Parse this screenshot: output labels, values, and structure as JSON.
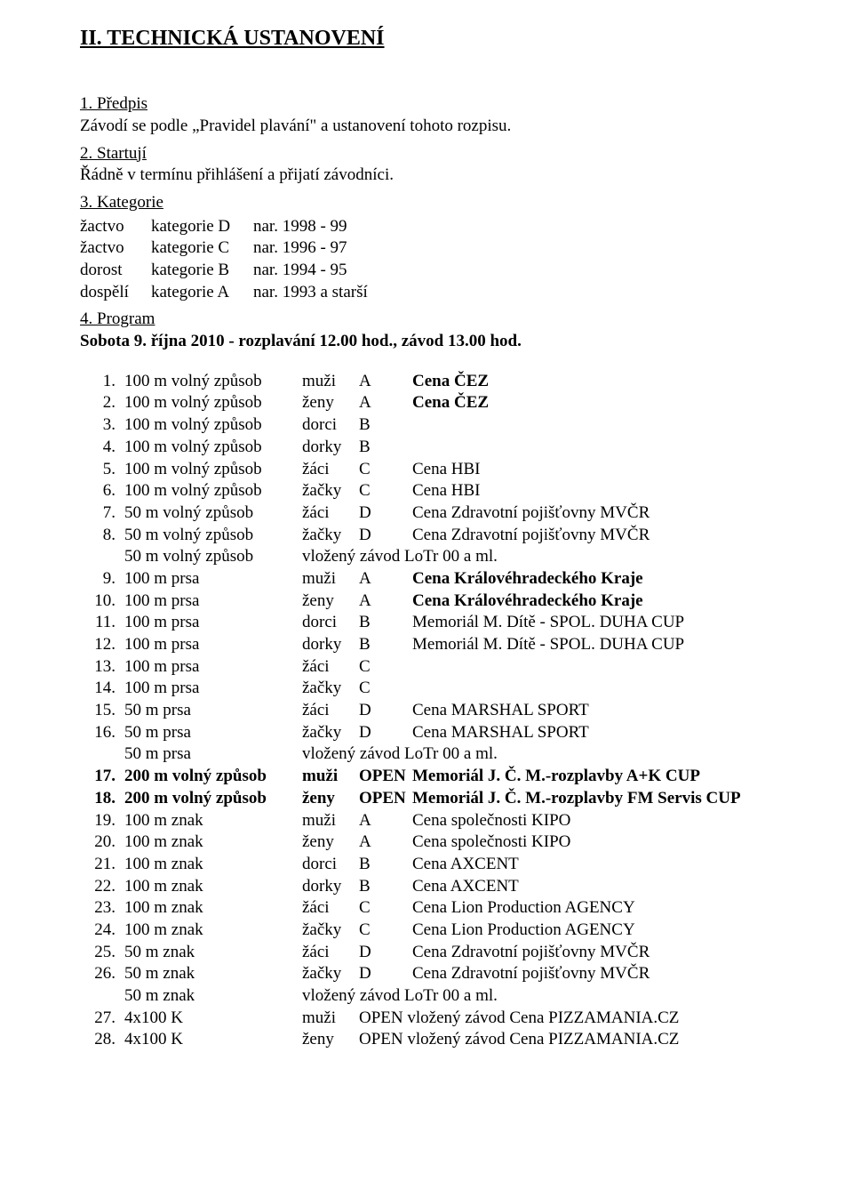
{
  "title": "II.  TECHNICKÁ USTANOVENÍ",
  "sections": {
    "s1": {
      "title": "1. Předpis",
      "text": "Závodí se podle „Pravidel plavání\" a ustanovení tohoto rozpisu."
    },
    "s2": {
      "title": "2. Startují",
      "text": "Řádně v termínu přihlášení a přijatí závodníci."
    },
    "s3": {
      "title": "3. Kategorie"
    },
    "s4": {
      "title": "4. Program",
      "time": "Sobota 9. října 2010 - rozplavání 12.00 hod., závod 13.00 hod."
    }
  },
  "categories": [
    {
      "group": "žactvo",
      "label": "kategorie D",
      "years": "nar. 1998 - 99"
    },
    {
      "group": "žactvo",
      "label": "kategorie C",
      "years": "nar. 1996 - 97"
    },
    {
      "group": "dorost",
      "label": "kategorie B",
      "years": "nar. 1994 - 95"
    },
    {
      "group": "dospělí",
      "label": "kategorie A",
      "years": "nar. 1993 a starší"
    }
  ],
  "events": [
    {
      "n": "1.",
      "ev": "100 m volný způsob",
      "gr": "muži",
      "cat": "A",
      "aw": "Cena ČEZ",
      "bold_aw": true
    },
    {
      "n": "2.",
      "ev": "100 m volný způsob",
      "gr": "ženy",
      "cat": "A",
      "aw": "Cena ČEZ",
      "bold_aw": true
    },
    {
      "n": "3.",
      "ev": "100 m volný způsob",
      "gr": "dorci",
      "cat": "B",
      "aw": ""
    },
    {
      "n": "4.",
      "ev": "100 m volný způsob",
      "gr": "dorky",
      "cat": "B",
      "aw": ""
    },
    {
      "n": "5.",
      "ev": "100 m volný způsob",
      "gr": "žáci",
      "cat": "C",
      "aw": "Cena HBI"
    },
    {
      "n": "6.",
      "ev": "100 m volný způsob",
      "gr": "žačky",
      "cat": "C",
      "aw": "Cena HBI"
    },
    {
      "n": "7.",
      "ev": "50 m volný způsob",
      "gr": "žáci",
      "cat": "D",
      "aw": "Cena Zdravotní pojišťovny MVČR"
    },
    {
      "n": "8.",
      "ev": "50 m volný způsob",
      "gr": "žačky",
      "cat": "D",
      "aw": "Cena Zdravotní pojišťovny MVČR"
    },
    {
      "n": "",
      "ev": "50 m volný způsob",
      "gr": "",
      "cat": "",
      "aw": "vložený závod LoTr 00 a ml.",
      "span": true
    },
    {
      "n": "9.",
      "ev": "100 m prsa",
      "gr": "muži",
      "cat": "A",
      "aw": "Cena Královéhradeckého Kraje",
      "bold_aw": true
    },
    {
      "n": "10.",
      "ev": "100 m prsa",
      "gr": "ženy",
      "cat": "A",
      "aw": "Cena Královéhradeckého Kraje",
      "bold_aw": true
    },
    {
      "n": "11.",
      "ev": "100 m prsa",
      "gr": "dorci",
      "cat": "B",
      "aw": "Memoriál M. Dítě - SPOL. DUHA CUP"
    },
    {
      "n": "12.",
      "ev": "100 m prsa",
      "gr": "dorky",
      "cat": "B",
      "aw": "Memoriál M. Dítě - SPOL. DUHA CUP"
    },
    {
      "n": "13.",
      "ev": "100 m prsa",
      "gr": "žáci",
      "cat": "C",
      "aw": ""
    },
    {
      "n": "14.",
      "ev": "100 m prsa",
      "gr": "žačky",
      "cat": "C",
      "aw": ""
    },
    {
      "n": "15.",
      "ev": "50 m prsa",
      "gr": "žáci",
      "cat": "D",
      "aw": "Cena MARSHAL SPORT"
    },
    {
      "n": "16.",
      "ev": "50 m prsa",
      "gr": "žačky",
      "cat": "D",
      "aw": "Cena MARSHAL SPORT"
    },
    {
      "n": "",
      "ev": "50 m prsa",
      "gr": "",
      "cat": "",
      "aw": "vložený závod LoTr 00 a ml.",
      "span": true
    },
    {
      "n": "17.",
      "ev": "200 m volný způsob",
      "gr": "muži",
      "cat": "OPEN",
      "aw": "Memoriál J. Č. M.-rozplavby   A+K CUP",
      "bold_row": true
    },
    {
      "n": "18.",
      "ev": "200 m volný způsob",
      "gr": "ženy",
      "cat": "OPEN",
      "aw": "Memoriál J. Č. M.-rozplavby   FM Servis CUP",
      "bold_row": true
    },
    {
      "n": "19.",
      "ev": "100 m znak",
      "gr": "muži",
      "cat": "A",
      "aw": "Cena společnosti KIPO"
    },
    {
      "n": "20.",
      "ev": "100 m znak",
      "gr": "ženy",
      "cat": "A",
      "aw": "Cena společnosti KIPO"
    },
    {
      "n": "21.",
      "ev": "100 m znak",
      "gr": "dorci",
      "cat": "B",
      "aw": "Cena AXCENT"
    },
    {
      "n": "22.",
      "ev": "100 m znak",
      "gr": "dorky",
      "cat": "B",
      "aw": "Cena AXCENT"
    },
    {
      "n": "23.",
      "ev": "100 m znak",
      "gr": "žáci",
      "cat": "C",
      "aw": "Cena Lion Production AGENCY"
    },
    {
      "n": "24.",
      "ev": "100 m znak",
      "gr": "žačky",
      "cat": "C",
      "aw": "Cena Lion Production AGENCY"
    },
    {
      "n": "25.",
      "ev": "50 m znak",
      "gr": "žáci",
      "cat": "D",
      "aw": "Cena Zdravotní pojišťovny MVČR"
    },
    {
      "n": "26.",
      "ev": "50 m znak",
      "gr": "žačky",
      "cat": "D",
      "aw": "Cena Zdravotní pojišťovny MVČR"
    },
    {
      "n": "",
      "ev": "50 m znak",
      "gr": "",
      "cat": "",
      "aw": "vložený závod LoTr 00 a ml.",
      "span": true
    },
    {
      "n": "27.",
      "ev": "4x100 K",
      "gr": "muži",
      "cat": "OPEN",
      "aw": "vložený závod Cena PIZZAMANIA.CZ",
      "cat3": true
    },
    {
      "n": "28.",
      "ev": "4x100 K",
      "gr": "ženy",
      "cat": "OPEN",
      "aw": "vložený závod Cena PIZZAMANIA.CZ",
      "cat3": true
    }
  ]
}
